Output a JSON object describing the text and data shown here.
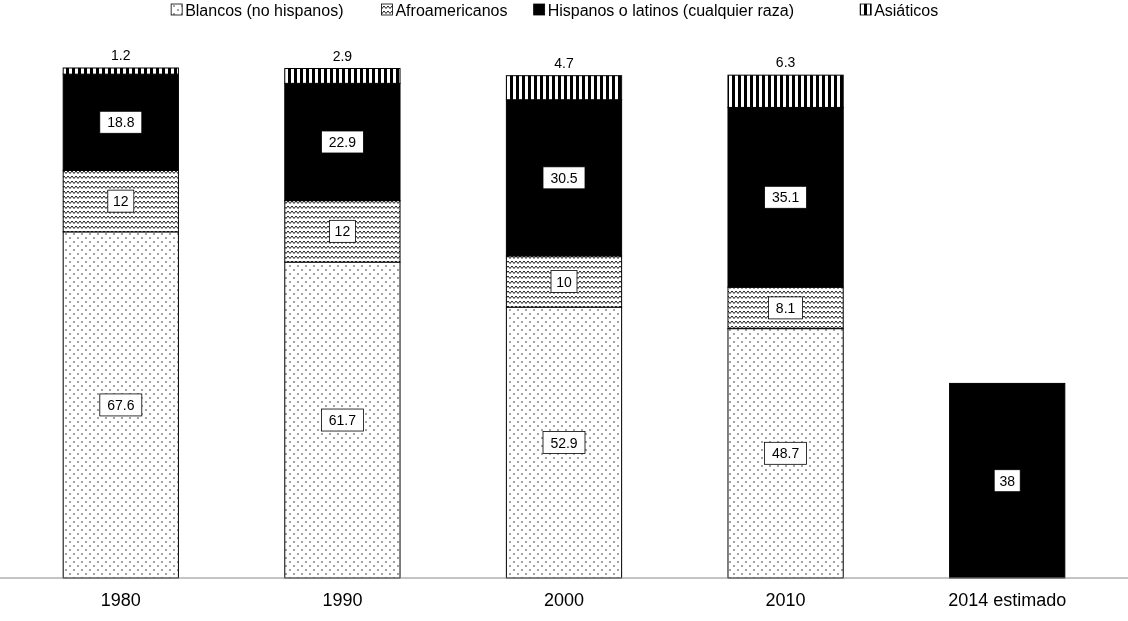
{
  "chart_data": {
    "type": "bar",
    "stacked": true,
    "data_labels": true,
    "legend": "top",
    "categories": [
      "1980",
      "1990",
      "2000",
      "2010",
      "2014 estimado"
    ],
    "series": [
      {
        "name": "Blancos (no hispanos)",
        "color": "#000000",
        "values": [
          67.6,
          61.7,
          52.9,
          48.7,
          null
        ]
      },
      {
        "name": "Afroamericanos",
        "color": "#000000",
        "values": [
          12,
          12,
          10,
          8.1,
          null
        ]
      },
      {
        "name": "Hispanos o latinos (cualquier raza)",
        "color": "#000000",
        "values": [
          18.8,
          22.9,
          30.5,
          35.1,
          38
        ]
      },
      {
        "name": "Asiáticos",
        "color": "#000000",
        "values": [
          1.2,
          2.9,
          4.7,
          6.3,
          null
        ]
      }
    ]
  }
}
